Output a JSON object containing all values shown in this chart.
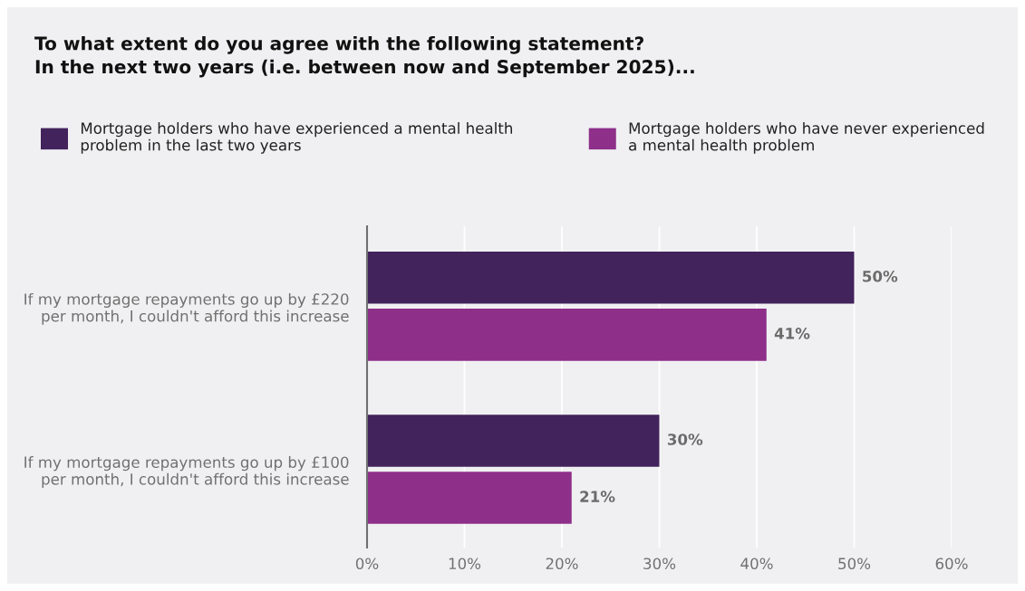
{
  "chart_data": {
    "type": "bar",
    "orientation": "horizontal",
    "title": "To what extent do you agree with the following statement?\nIn the next two years (i.e. between now and September 2025)...",
    "categories": [
      "If my mortgage repayments go up by £220\nper month, I couldn't afford this increase",
      "If my mortgage repayments go up by £100\nper month, I couldn't afford this increase"
    ],
    "series": [
      {
        "name": "Mortgage holders who have experienced a mental health\nproblem in the last two years",
        "color": "#42235c",
        "values": [
          50,
          30
        ],
        "value_labels": [
          "50%",
          "30%"
        ]
      },
      {
        "name": "Mortgage holders who have never experienced\na mental health problem",
        "color": "#8e2f89",
        "values": [
          41,
          21
        ],
        "value_labels": [
          "41%",
          "21%"
        ]
      }
    ],
    "xlim": [
      0,
      60
    ],
    "xticks": [
      {
        "value": 0,
        "label": "0%"
      },
      {
        "value": 10,
        "label": "10%"
      },
      {
        "value": 20,
        "label": "20%"
      },
      {
        "value": 30,
        "label": "30%"
      },
      {
        "value": 40,
        "label": "40%"
      },
      {
        "value": 50,
        "label": "50%"
      },
      {
        "value": 60,
        "label": "60%"
      }
    ],
    "grid": "x",
    "legend": "top"
  }
}
